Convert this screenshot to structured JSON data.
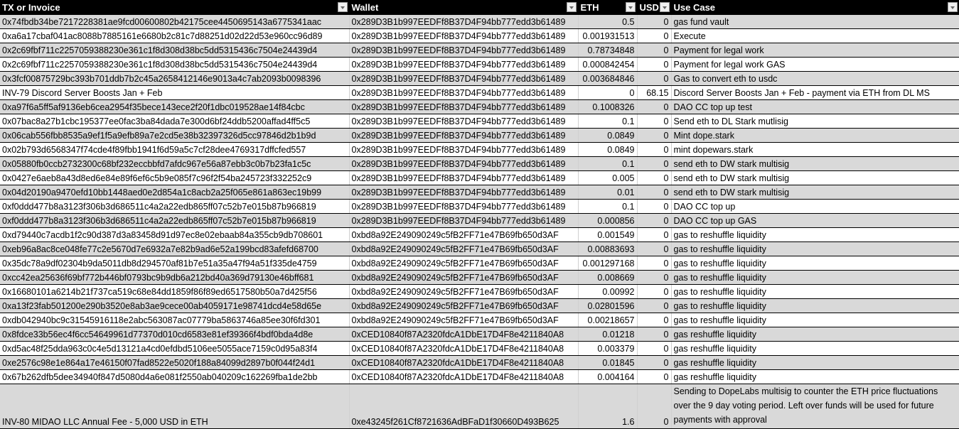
{
  "headers": [
    "TX or Invoice",
    "Wallet",
    "ETH",
    "USD",
    "Use Case"
  ],
  "rows": [
    {
      "tx": "0x74fbdb34be7217228381ae9fcd00600802b42175cee4450695143a6775341aac",
      "wallet": "0x289D3B1b997EEDFf8B37D4F94bb777edd3b61489",
      "eth": "0.5",
      "usd": "0",
      "use": "gas fund vault"
    },
    {
      "tx": "0xa6a17cbaf041ac8088b7885161e6680b2c81c7d88251d02d22d53e960cc96d89",
      "wallet": "0x289D3B1b997EEDFf8B37D4F94bb777edd3b61489",
      "eth": "0.001931513",
      "usd": "0",
      "use": "Execute"
    },
    {
      "tx": "0x2c69fbf711c2257059388230e361c1f8d308d38bc5dd5315436c7504e24439d4",
      "wallet": "0x289D3B1b997EEDFf8B37D4F94bb777edd3b61489",
      "eth": "0.78734848",
      "usd": "0",
      "use": "Payment for legal work"
    },
    {
      "tx": "0x2c69fbf711c2257059388230e361c1f8d308d38bc5dd5315436c7504e24439d4",
      "wallet": "0x289D3B1b997EEDFf8B37D4F94bb777edd3b61489",
      "eth": "0.000842454",
      "usd": "0",
      "use": "Payment for legal work GAS"
    },
    {
      "tx": "0x3fcf00875729bc393b701ddb7b2c45a2658412146e9013a4c7ab2093b0098396",
      "wallet": "0x289D3B1b997EEDFf8B37D4F94bb777edd3b61489",
      "eth": "0.003684846",
      "usd": "0",
      "use": "Gas to convert eth to usdc"
    },
    {
      "tx": "INV-79 Discord Server Boosts Jan + Feb",
      "wallet": "0x289D3B1b997EEDFf8B37D4F94bb777edd3b61489",
      "eth": "0",
      "usd": "68.15",
      "use": "Discord Server Boosts Jan + Feb - payment via ETH from DL MS"
    },
    {
      "tx": "0xa97f6a5ff5af9136eb6cea2954f35bece143ece2f20f1dbc019528ae14f84cbc",
      "wallet": "0x289D3B1b997EEDFf8B37D4F94bb777edd3b61489",
      "eth": "0.1008326",
      "usd": "0",
      "use": "DAO CC top up test"
    },
    {
      "tx": "0x07bac8a27b1cbc195377ee0fac3ba84dada7e300d6bf24ddb5200affad4ff5c5",
      "wallet": "0x289D3B1b997EEDFf8B37D4F94bb777edd3b61489",
      "eth": "0.1",
      "usd": "0",
      "use": "Send eth to DL Stark mutlisig"
    },
    {
      "tx": "0x06cab556fbb8535a9ef1f5a9efb89a7e2cd5e38b32397326d5cc97846d2b1b9d",
      "wallet": "0x289D3B1b997EEDFf8B37D4F94bb777edd3b61489",
      "eth": "0.0849",
      "usd": "0",
      "use": "Mint dope.stark"
    },
    {
      "tx": "0x02b793d6568347f74cde4f89fbb1941f6d59a5c7cf28dee4769317dffcfed557",
      "wallet": "0x289D3B1b997EEDFf8B37D4F94bb777edd3b61489",
      "eth": "0.0849",
      "usd": "0",
      "use": "mint dopewars.stark"
    },
    {
      "tx": "0x05880fb0ccb2732300c68bf232eccbbfd7afdc967e56a87ebb3c0b7b23fa1c5c",
      "wallet": "0x289D3B1b997EEDFf8B37D4F94bb777edd3b61489",
      "eth": "0.1",
      "usd": "0",
      "use": "send eth to DW stark multisig"
    },
    {
      "tx": "0x0427e6aeb8a43d8ed6e84e89f6ef6c5b9e085f7c96f2f54ba245723f332252c9",
      "wallet": "0x289D3B1b997EEDFf8B37D4F94bb777edd3b61489",
      "eth": "0.005",
      "usd": "0",
      "use": "send eth to DW stark multisig"
    },
    {
      "tx": "0x04d20190a9470efd10bb1448aed0e2d854a1c8acb2a25f065e861a863ec19b99",
      "wallet": "0x289D3B1b997EEDFf8B37D4F94bb777edd3b61489",
      "eth": "0.01",
      "usd": "0",
      "use": "send eth to DW stark multisig"
    },
    {
      "tx": "0xf0ddd477b8a3123f306b3d686511c4a2a22edb865ff07c52b7e015b87b966819",
      "wallet": "0x289D3B1b997EEDFf8B37D4F94bb777edd3b61489",
      "eth": "0.1",
      "usd": "0",
      "use": "DAO CC top up"
    },
    {
      "tx": "0xf0ddd477b8a3123f306b3d686511c4a2a22edb865ff07c52b7e015b87b966819",
      "wallet": "0x289D3B1b997EEDFf8B37D4F94bb777edd3b61489",
      "eth": "0.000856",
      "usd": "0",
      "use": "DAO CC top up GAS"
    },
    {
      "tx": "0xd79440c7acdb1f2c90d387d3a83458d91d97ec8e02ebaab84a355cb9db708601",
      "wallet": "0xbd8a92E249090249c5fB2FF71e47B69fb650d3AF",
      "eth": "0.001549",
      "usd": "0",
      "use": "gas to reshuffle liquidity"
    },
    {
      "tx": "0xeb96a8ac8ce048fe77c2e5670d7e6932a7e82b9ad6e52a199bcd83afefd68700",
      "wallet": "0xbd8a92E249090249c5fB2FF71e47B69fb650d3AF",
      "eth": "0.00883693",
      "usd": "0",
      "use": "gas to reshuffle liquidity"
    },
    {
      "tx": "0x35dc78a9df02304b9da5011db8d294570af81b7e51a35a47f94a51f335de4759",
      "wallet": "0xbd8a92E249090249c5fB2FF71e47B69fb650d3AF",
      "eth": "0.001297168",
      "usd": "0",
      "use": "gas to reshuffle liquidity"
    },
    {
      "tx": "0xcc42ea25636f69bf772b446bf0793bc9b9db6a212bd40a369d79130e46bff681",
      "wallet": "0xbd8a92E249090249c5fB2FF71e47B69fb650d3AF",
      "eth": "0.008669",
      "usd": "0",
      "use": "gas to reshuffle liquidity"
    },
    {
      "tx": "0x16680101a6214b21f737ca519c68e84dd1859f86f89ed6517580b50a7d425f56",
      "wallet": "0xbd8a92E249090249c5fB2FF71e47B69fb650d3AF",
      "eth": "0.00992",
      "usd": "0",
      "use": "gas to reshuffle liquidity"
    },
    {
      "tx": "0xa13f23fab501200e290b3520e8ab3ae9cece00ab4059171e98741dcd4e58d65e",
      "wallet": "0xbd8a92E249090249c5fB2FF71e47B69fb650d3AF",
      "eth": "0.02801596",
      "usd": "0",
      "use": "gas to reshuffle liquidity"
    },
    {
      "tx": "0xdb042940bc9c31545916118e2abc563087ac07779ba5863746a85ee30f6fd301",
      "wallet": "0xbd8a92E249090249c5fB2FF71e47B69fb650d3AF",
      "eth": "0.00218657",
      "usd": "0",
      "use": "gas to reshuffle liquidity"
    },
    {
      "tx": "0x8fdce33b56ec4f6cc54649961d77370d010cd6583e81ef39366f4bdf0bda4d8e",
      "wallet": "0xCED10840f87A2320fdcA1DbE17D4F8e4211840A8",
      "eth": "0.01218",
      "usd": "0",
      "use": "gas reshuffle liquidity"
    },
    {
      "tx": "0xd5ac48f25dda963c0c4e5d13121a4cd0efdbd5106ee5055ace7159c0d95a83f4",
      "wallet": "0xCED10840f87A2320fdcA1DbE17D4F8e4211840A8",
      "eth": "0.003379",
      "usd": "0",
      "use": "gas reshuffle liquidity"
    },
    {
      "tx": "0xe2576c98e1e864a17e46150f07fad8522e5020f188a84099d2897b0f044f24d1",
      "wallet": "0xCED10840f87A2320fdcA1DbE17D4F8e4211840A8",
      "eth": "0.01845",
      "usd": "0",
      "use": "gas reshuffle liquidity"
    },
    {
      "tx": "0x67b262dfb5dee34940f847d5080d4a6e081f2550ab040209c162269fba1de2bb",
      "wallet": "0xCED10840f87A2320fdcA1DbE17D4F8e4211840A8",
      "eth": "0.004164",
      "usd": "0",
      "use": "gas reshuffle liquidity"
    },
    {
      "tx": "INV-80 MIDAO LLC Annual Fee - 5,000 USD in ETH",
      "wallet": "0xe43245f261Cf8721636AdBFaD1f30660D493B625",
      "eth": "1.6",
      "usd": "0",
      "use": "Sending to DopeLabs multisig to counter the ETH price fluctuations over the 9 day voting period. Left over funds will be used for future payments with approval"
    }
  ]
}
